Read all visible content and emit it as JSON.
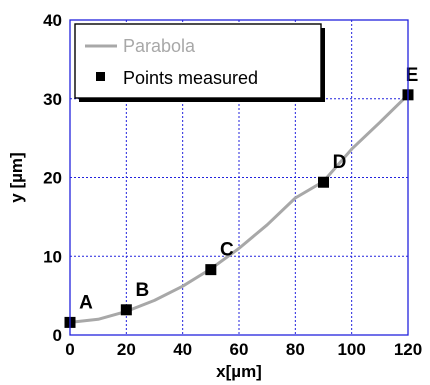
{
  "chart_data": {
    "type": "scatter",
    "xlabel": "x[µm]",
    "ylabel": "y [µm]",
    "xlim": [
      0,
      120
    ],
    "ylim": [
      0,
      40
    ],
    "x_ticks": [
      "0",
      "20",
      "40",
      "60",
      "80",
      "100",
      "120"
    ],
    "y_ticks": [
      "0",
      "10",
      "20",
      "30",
      "40"
    ],
    "grid": true,
    "legend_position": "top-left",
    "legend": [
      {
        "label": "Parabola",
        "marker": "line",
        "color": "#a8a8a8"
      },
      {
        "label": "Points measured",
        "marker": "square",
        "color": "#000000"
      }
    ],
    "series": [
      {
        "name": "Parabola",
        "kind": "line",
        "color": "#a8a8a8",
        "x": [
          0,
          10,
          20,
          30,
          40,
          50,
          60,
          70,
          80,
          90,
          100,
          110,
          120
        ],
        "y": [
          1.6,
          2.0,
          3.0,
          4.4,
          6.2,
          8.4,
          11.0,
          14.0,
          17.4,
          19.5,
          23.6,
          27.0,
          30.5
        ]
      },
      {
        "name": "Points measured",
        "kind": "scatter",
        "color": "#000000",
        "points": [
          {
            "label": "A",
            "x": 0,
            "y": 1.6
          },
          {
            "label": "B",
            "x": 20,
            "y": 3.2
          },
          {
            "label": "C",
            "x": 50,
            "y": 8.3
          },
          {
            "label": "D",
            "x": 90,
            "y": 19.4
          },
          {
            "label": "E",
            "x": 120,
            "y": 30.5
          }
        ]
      }
    ]
  },
  "colors": {
    "frame": "#2222dd",
    "grid": "#2222dd",
    "curve": "#a8a8a8",
    "marker": "#000000"
  }
}
